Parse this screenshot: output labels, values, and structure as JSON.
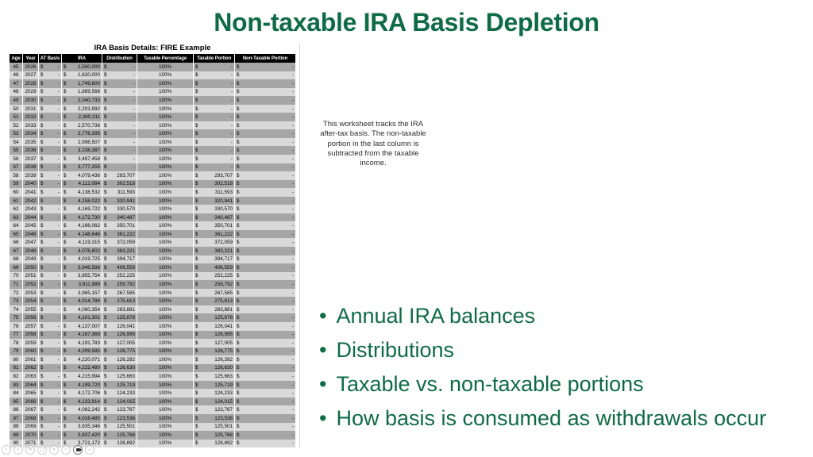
{
  "slide": {
    "title": "Non-taxable IRA Basis Depletion"
  },
  "colors": {
    "accent_green": "#0E6B46",
    "row_dark": "#A6A6A6",
    "row_light": "#D9D9D9",
    "header_bg": "#000000",
    "header_text": "#FFFFFF"
  },
  "worksheet": {
    "title": "IRA Basis Details: FIRE Example",
    "columns": [
      "Age",
      "Year",
      "AT Basis",
      "IRA",
      "Distribution",
      "Taxable Percentage",
      "Taxable Portion",
      "Non-Taxable Portion"
    ],
    "rows": [
      [
        "45",
        "2026",
        "-",
        "1,500,000",
        "-",
        "100%",
        "-",
        "-"
      ],
      [
        "46",
        "2027",
        "-",
        "1,620,000",
        "-",
        "100%",
        "-",
        "-"
      ],
      [
        "47",
        "2028",
        "-",
        "1,749,600",
        "-",
        "100%",
        "-",
        "-"
      ],
      [
        "48",
        "2029",
        "-",
        "1,889,568",
        "-",
        "100%",
        "-",
        "-"
      ],
      [
        "49",
        "2030",
        "-",
        "2,040,733",
        "-",
        "100%",
        "-",
        "-"
      ],
      [
        "50",
        "2031",
        "-",
        "2,203,992",
        "-",
        "100%",
        "-",
        "-"
      ],
      [
        "51",
        "2032",
        "-",
        "2,380,311",
        "-",
        "100%",
        "-",
        "-"
      ],
      [
        "52",
        "2033",
        "-",
        "2,570,736",
        "-",
        "100%",
        "-",
        "-"
      ],
      [
        "53",
        "2034",
        "-",
        "2,776,395",
        "-",
        "100%",
        "-",
        "-"
      ],
      [
        "54",
        "2035",
        "-",
        "2,998,507",
        "-",
        "100%",
        "-",
        "-"
      ],
      [
        "55",
        "2036",
        "-",
        "3,238,387",
        "-",
        "100%",
        "-",
        "-"
      ],
      [
        "56",
        "2037",
        "-",
        "3,497,458",
        "-",
        "100%",
        "-",
        "-"
      ],
      [
        "57",
        "2038",
        "-",
        "3,777,255",
        "-",
        "100%",
        "-",
        "-"
      ],
      [
        "58",
        "2039",
        "-",
        "4,079,436",
        "293,707",
        "100%",
        "293,707",
        "-"
      ],
      [
        "59",
        "2040",
        "-",
        "4,112,084",
        "302,518",
        "100%",
        "302,518",
        "-"
      ],
      [
        "60",
        "2041",
        "-",
        "4,138,532",
        "311,593",
        "100%",
        "311,593",
        "-"
      ],
      [
        "61",
        "2042",
        "-",
        "4,158,022",
        "320,941",
        "100%",
        "320,941",
        "-"
      ],
      [
        "62",
        "2043",
        "-",
        "4,169,722",
        "330,570",
        "100%",
        "330,570",
        "-"
      ],
      [
        "63",
        "2044",
        "-",
        "4,172,730",
        "340,487",
        "100%",
        "340,487",
        "-"
      ],
      [
        "64",
        "2045",
        "-",
        "4,166,062",
        "350,701",
        "100%",
        "350,701",
        "-"
      ],
      [
        "65",
        "2046",
        "-",
        "4,148,646",
        "361,222",
        "100%",
        "361,222",
        "-"
      ],
      [
        "66",
        "2047",
        "-",
        "4,119,315",
        "372,059",
        "100%",
        "372,059",
        "-"
      ],
      [
        "67",
        "2048",
        "-",
        "4,076,802",
        "383,221",
        "100%",
        "383,221",
        "-"
      ],
      [
        "68",
        "2049",
        "-",
        "4,019,725",
        "394,717",
        "100%",
        "394,717",
        "-"
      ],
      [
        "69",
        "2050",
        "-",
        "3,946,586",
        "406,559",
        "100%",
        "406,559",
        "-"
      ],
      [
        "70",
        "2051",
        "-",
        "3,855,754",
        "252,225",
        "100%",
        "252,225",
        "-"
      ],
      [
        "71",
        "2052",
        "-",
        "3,911,989",
        "259,792",
        "100%",
        "259,792",
        "-"
      ],
      [
        "72",
        "2053",
        "-",
        "3,965,157",
        "267,585",
        "100%",
        "267,585",
        "-"
      ],
      [
        "73",
        "2054",
        "-",
        "4,014,784",
        "275,613",
        "100%",
        "275,613",
        "-"
      ],
      [
        "74",
        "2055",
        "-",
        "4,060,354",
        "283,881",
        "100%",
        "283,881",
        "-"
      ],
      [
        "75",
        "2056",
        "-",
        "4,101,301",
        "125,678",
        "100%",
        "125,678",
        "-"
      ],
      [
        "76",
        "2057",
        "-",
        "4,137,007",
        "126,041",
        "100%",
        "126,041",
        "-"
      ],
      [
        "77",
        "2058",
        "-",
        "4,167,369",
        "126,995",
        "100%",
        "126,995",
        "-"
      ],
      [
        "78",
        "2059",
        "-",
        "4,191,783",
        "127,005",
        "100%",
        "127,005",
        "-"
      ],
      [
        "79",
        "2060",
        "-",
        "4,209,585",
        "126,775",
        "100%",
        "126,775",
        "-"
      ],
      [
        "80",
        "2061",
        "-",
        "4,220,071",
        "126,282",
        "100%",
        "126,282",
        "-"
      ],
      [
        "81",
        "2062",
        "-",
        "4,222,480",
        "126,630",
        "100%",
        "126,630",
        "-"
      ],
      [
        "82",
        "2063",
        "-",
        "4,215,994",
        "125,663",
        "100%",
        "125,663",
        "-"
      ],
      [
        "83",
        "2064",
        "-",
        "4,199,720",
        "125,719",
        "100%",
        "125,719",
        "-"
      ],
      [
        "84",
        "2065",
        "-",
        "4,172,706",
        "124,233",
        "100%",
        "124,233",
        "-"
      ],
      [
        "85",
        "2066",
        "-",
        "4,133,914",
        "124,015",
        "100%",
        "124,015",
        "-"
      ],
      [
        "86",
        "2067",
        "-",
        "4,082,242",
        "123,767",
        "100%",
        "123,767",
        "-"
      ],
      [
        "87",
        "2068",
        "-",
        "4,016,485",
        "123,536",
        "100%",
        "123,536",
        "-"
      ],
      [
        "88",
        "2069",
        "-",
        "3,935,346",
        "125,501",
        "100%",
        "125,501",
        "-"
      ],
      [
        "89",
        "2070",
        "-",
        "3,837,420",
        "125,768",
        "100%",
        "125,768",
        "-"
      ],
      [
        "90",
        "2071",
        "-",
        "3,721,172",
        "128,892",
        "100%",
        "128,892",
        "-"
      ]
    ]
  },
  "note": {
    "lines": [
      "This worksheet tracks the IRA",
      "after-tax basis. The non-taxable",
      "portion in the last column is",
      "subtracted from the taxable",
      "income."
    ]
  },
  "bullets": {
    "items": [
      "Annual IRA balances",
      "Distributions",
      "Taxable vs. non-taxable portions",
      "How basis is consumed as withdrawals occur"
    ]
  },
  "toolbar": {
    "icons": [
      "previous-slide",
      "next-slide",
      "pen",
      "see-all-slides",
      "zoom",
      "more-options",
      "camera",
      "end-show"
    ]
  }
}
